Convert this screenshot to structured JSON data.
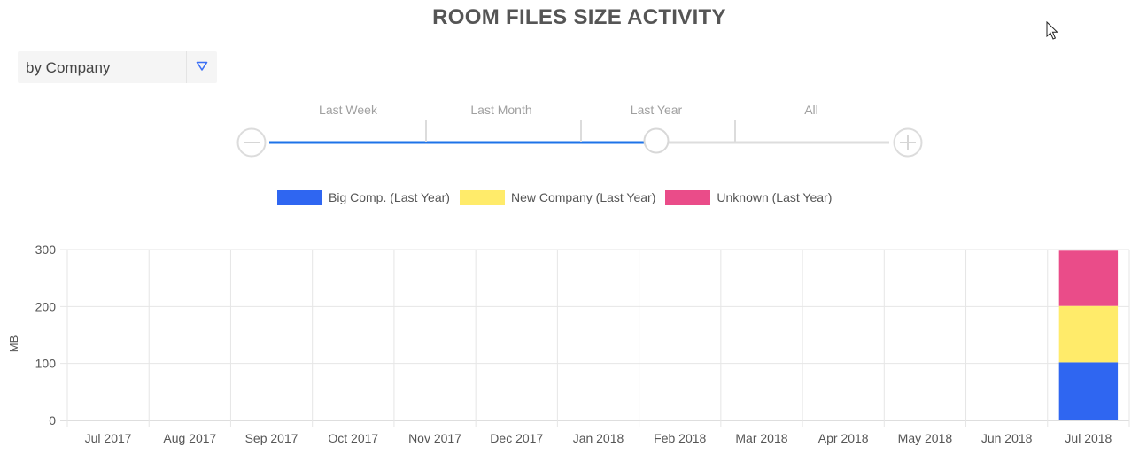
{
  "page": {
    "title": "ROOM FILES SIZE ACTIVITY"
  },
  "filter": {
    "group_by": "by Company"
  },
  "range": {
    "labels": [
      "Last Week",
      "Last Month",
      "Last Year",
      "All"
    ],
    "selected": "Last Year",
    "selected_index": 2
  },
  "colors": {
    "accent": "#1E73E8",
    "track": "#dddddd"
  },
  "icons": {
    "zoom_out": "minus-circle-icon",
    "zoom_in": "plus-circle-icon",
    "dropdown": "triangle-down-icon",
    "cursor": "mouse-pointer-icon"
  },
  "chart_data": {
    "type": "bar",
    "stacked": true,
    "title": "",
    "xlabel": "",
    "ylabel": "MB",
    "ylim": [
      0,
      300
    ],
    "yticks": [
      0,
      100,
      200,
      300
    ],
    "grid": true,
    "legend_position": "top",
    "categories": [
      "Jul 2017",
      "Aug 2017",
      "Sep 2017",
      "Oct 2017",
      "Nov 2017",
      "Dec 2017",
      "Jan 2018",
      "Feb 2018",
      "Mar 2018",
      "Apr 2018",
      "May 2018",
      "Jun 2018",
      "Jul 2018"
    ],
    "series": [
      {
        "name": "Big Comp. (Last Year)",
        "color": "#2F66F1",
        "values": [
          0,
          0,
          0,
          0,
          0,
          0,
          0,
          0,
          0,
          0,
          0,
          0,
          102
        ]
      },
      {
        "name": "New Company (Last Year)",
        "color": "#FFEB6A",
        "values": [
          0,
          0,
          0,
          0,
          0,
          0,
          0,
          0,
          0,
          0,
          0,
          0,
          99
        ]
      },
      {
        "name": "Unknown (Last Year)",
        "color": "#EA4C89",
        "values": [
          0,
          0,
          0,
          0,
          0,
          0,
          0,
          0,
          0,
          0,
          0,
          0,
          97
        ]
      }
    ]
  }
}
